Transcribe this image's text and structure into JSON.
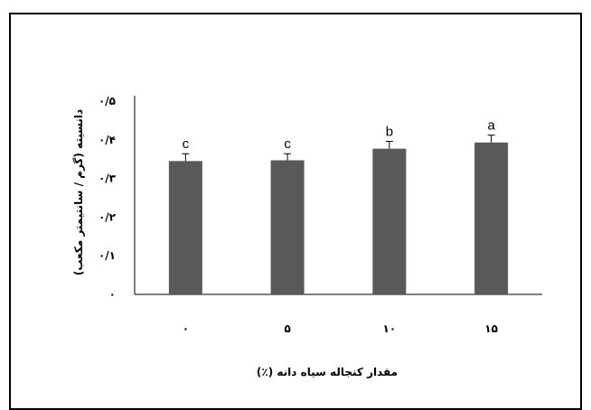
{
  "chart_data": {
    "type": "bar",
    "categories": [
      "0",
      "5",
      "10",
      "15"
    ],
    "category_labels": [
      "۰",
      "۵",
      "۱۰",
      "۱۵"
    ],
    "values": [
      0.345,
      0.347,
      0.377,
      0.393
    ],
    "errors": [
      0.019,
      0.017,
      0.019,
      0.019
    ],
    "significance_letters": [
      "c",
      "c",
      "b",
      "a"
    ],
    "yticks": [
      0,
      0.1,
      0.2,
      0.3,
      0.4,
      0.5
    ],
    "ytick_labels": [
      "۰",
      "۰/۱",
      "۰/۲",
      "۰/۳",
      "۰/۴",
      "۰/۵"
    ],
    "ylim": [
      0,
      0.5
    ],
    "xlabel": "مقدار کنجاله سیاه دانه (٪)",
    "ylabel": "دانسیته (گرم / سانتیمتر مکعب)",
    "colors": {
      "bar": "#595959",
      "axis": "#000000"
    },
    "grid": false,
    "legend": "none"
  }
}
